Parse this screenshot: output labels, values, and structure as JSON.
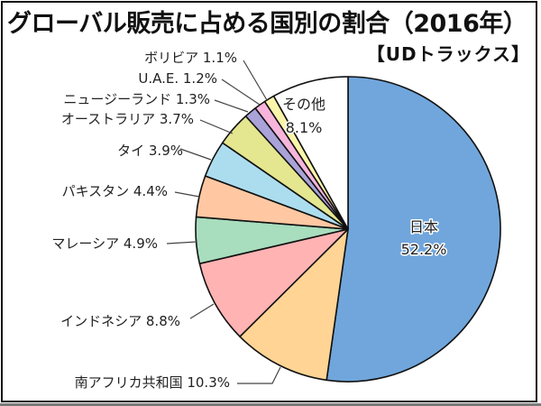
{
  "title": "グローバル販売に占める国別の割合（2016年）",
  "subtitle": "【UDトラックス】",
  "chart_data": {
    "type": "pie",
    "title": "グローバル販売に占める国別の割合（2016年）",
    "subtitle": "【UDトラックス】",
    "unit": "%",
    "start": "12 o'clock",
    "direction": "clockwise",
    "slices": [
      {
        "label": "日本",
        "value": 52.2,
        "display": "52.2%",
        "color": "#70A6DC",
        "label_position": "inside"
      },
      {
        "label": "南アフリカ共和国",
        "value": 10.3,
        "display": "10.3%",
        "color": "#FFD494",
        "label_position": "outside"
      },
      {
        "label": "インドネシア",
        "value": 8.8,
        "display": "8.8%",
        "color": "#FFB3B3",
        "label_position": "outside"
      },
      {
        "label": "マレーシア",
        "value": 4.9,
        "display": "4.9%",
        "color": "#A8DDBE",
        "label_position": "outside"
      },
      {
        "label": "パキスタン",
        "value": 4.4,
        "display": "4.4%",
        "color": "#FFC8A2",
        "label_position": "outside"
      },
      {
        "label": "タイ",
        "value": 3.9,
        "display": "3.9%",
        "color": "#ACDDEF",
        "label_position": "outside"
      },
      {
        "label": "オーストラリア",
        "value": 3.7,
        "display": "3.7%",
        "color": "#E4E690",
        "label_position": "outside"
      },
      {
        "label": "ニュージーランド",
        "value": 1.3,
        "display": "1.3%",
        "color": "#A9A3D9",
        "label_position": "outside"
      },
      {
        "label": "U.A.E.",
        "value": 1.2,
        "display": "1.2%",
        "color": "#F7B5DC",
        "label_position": "outside"
      },
      {
        "label": "ボリビア",
        "value": 1.1,
        "display": "1.1%",
        "color": "#FAF5AA",
        "label_position": "outside"
      },
      {
        "label": "その他",
        "value": 8.1,
        "display": "8.1%",
        "color": "#FFFFFF",
        "label_position": "inside"
      }
    ]
  }
}
